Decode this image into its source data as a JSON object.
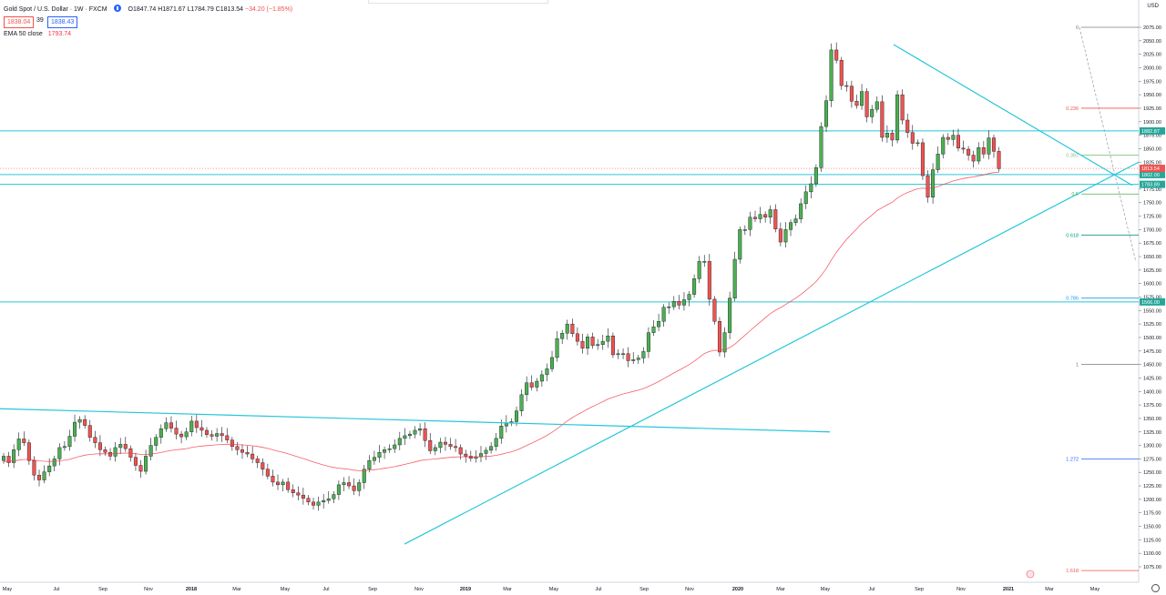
{
  "header": {
    "symbol": "Gold Spot / U.S. Dollar · 1W · FXCM",
    "open": "O1847.74",
    "high": "H1871.67",
    "low": "L1784.79",
    "close": "C1813.54",
    "change": "−34.20 (−1.85%)",
    "sell_price": "1838.04",
    "spread": "39",
    "buy_price": "1838.43",
    "ema_label": "EMA 50 close",
    "ema_value": "1793.74"
  },
  "axis_currency": "USD",
  "colors": {
    "up": "#4caf50",
    "down": "#ef5350",
    "trendline": "#26c6da",
    "ema": "#f23645",
    "fib_red": "#ef5350",
    "fib_green": "#4caf50",
    "fib_blue": "#2196f3",
    "fib_gray": "#787b86"
  },
  "chart_data": {
    "type": "candlestick",
    "title": "Gold Spot / U.S. Dollar · 1W · FXCM",
    "ylim": [
      1050,
      2100
    ],
    "y_ticks": [
      1075,
      1100,
      1125,
      1150,
      1175,
      1200,
      1225,
      1250,
      1275,
      1300,
      1325,
      1350,
      1375,
      1400,
      1425,
      1450,
      1475,
      1500,
      1525,
      1550,
      1575,
      1600,
      1625,
      1650,
      1675,
      1700,
      1725,
      1750,
      1775,
      1800,
      1825,
      1850,
      1875,
      1900,
      1925,
      1950,
      1975,
      2000,
      2025,
      2050,
      2075
    ],
    "x_tick_labels": [
      "May",
      "Jul",
      "Sep",
      "Nov",
      "2018",
      "Mar",
      "May",
      "Jul",
      "Sep",
      "Nov",
      "2019",
      "Mar",
      "May",
      "Jul",
      "Sep",
      "Nov",
      "2020",
      "Mar",
      "May",
      "Jul",
      "Sep",
      "Nov",
      "2021",
      "Mar",
      "May"
    ],
    "x_tick_pos": [
      8,
      62,
      113,
      163,
      210,
      260,
      313,
      358,
      409,
      460,
      511,
      557,
      608,
      657,
      707,
      757,
      810,
      857,
      906,
      957,
      1009,
      1055,
      1107,
      1152,
      1202
    ],
    "candle_count": 203,
    "candles_close": [
      1280,
      1268,
      1292,
      1312,
      1305,
      1272,
      1245,
      1236,
      1251,
      1262,
      1275,
      1296,
      1298,
      1317,
      1343,
      1348,
      1337,
      1315,
      1305,
      1292,
      1287,
      1280,
      1296,
      1302,
      1294,
      1278,
      1263,
      1252,
      1280,
      1300,
      1315,
      1331,
      1342,
      1332,
      1321,
      1316,
      1325,
      1345,
      1333,
      1328,
      1320,
      1317,
      1322,
      1318,
      1310,
      1298,
      1292,
      1287,
      1284,
      1275,
      1268,
      1256,
      1243,
      1232,
      1227,
      1232,
      1218,
      1212,
      1208,
      1202,
      1195,
      1189,
      1195,
      1198,
      1201,
      1209,
      1227,
      1231,
      1225,
      1216,
      1231,
      1256,
      1272,
      1278,
      1287,
      1292,
      1294,
      1301,
      1313,
      1318,
      1321,
      1328,
      1331,
      1309,
      1290,
      1296,
      1306,
      1302,
      1298,
      1296,
      1284,
      1280,
      1276,
      1279,
      1285,
      1291,
      1298,
      1313,
      1336,
      1342,
      1344,
      1364,
      1394,
      1416,
      1408,
      1419,
      1431,
      1442,
      1463,
      1498,
      1508,
      1525,
      1507,
      1493,
      1480,
      1501,
      1485,
      1487,
      1493,
      1503,
      1468,
      1470,
      1470,
      1457,
      1459,
      1462,
      1474,
      1509,
      1520,
      1530,
      1556,
      1557,
      1567,
      1560,
      1570,
      1580,
      1609,
      1641,
      1641,
      1571,
      1530,
      1473,
      1509,
      1573,
      1645,
      1700,
      1700,
      1723,
      1720,
      1728,
      1723,
      1737,
      1701,
      1677,
      1700,
      1713,
      1720,
      1748,
      1770,
      1785,
      1815,
      1891,
      1939,
      2033,
      2014,
      1967,
      1966,
      1938,
      1930,
      1956,
      1909,
      1923,
      1937,
      1871,
      1879,
      1866,
      1950,
      1903,
      1880,
      1860,
      1861,
      1800,
      1760,
      1811,
      1840,
      1871,
      1867,
      1875,
      1851,
      1849,
      1838,
      1827,
      1852,
      1840,
      1870,
      1845,
      1813
    ],
    "ema_start_y": 1270,
    "fib_levels": [
      {
        "label": "0",
        "value": 2075
      },
      {
        "label": "0.236",
        "value": 1925
      },
      {
        "label": "0.382",
        "value": 1838
      },
      {
        "label": "0.5",
        "value": 1766
      },
      {
        "label": "0.618",
        "value": 1690
      },
      {
        "label": "0.786",
        "value": 1573
      },
      {
        "label": "1",
        "value": 1450
      },
      {
        "label": "1.272",
        "value": 1275
      },
      {
        "label": "1.618",
        "value": 1068
      }
    ],
    "horizontal_lines": [
      {
        "label": "1882.87",
        "value": 1882.87
      },
      {
        "label": "1802.00",
        "value": 1802
      },
      {
        "label": "1783.89",
        "value": 1783.89
      },
      {
        "label": "1566.00",
        "value": 1566
      }
    ],
    "current_price": {
      "label": "1813.54",
      "value": 1813.54
    }
  }
}
